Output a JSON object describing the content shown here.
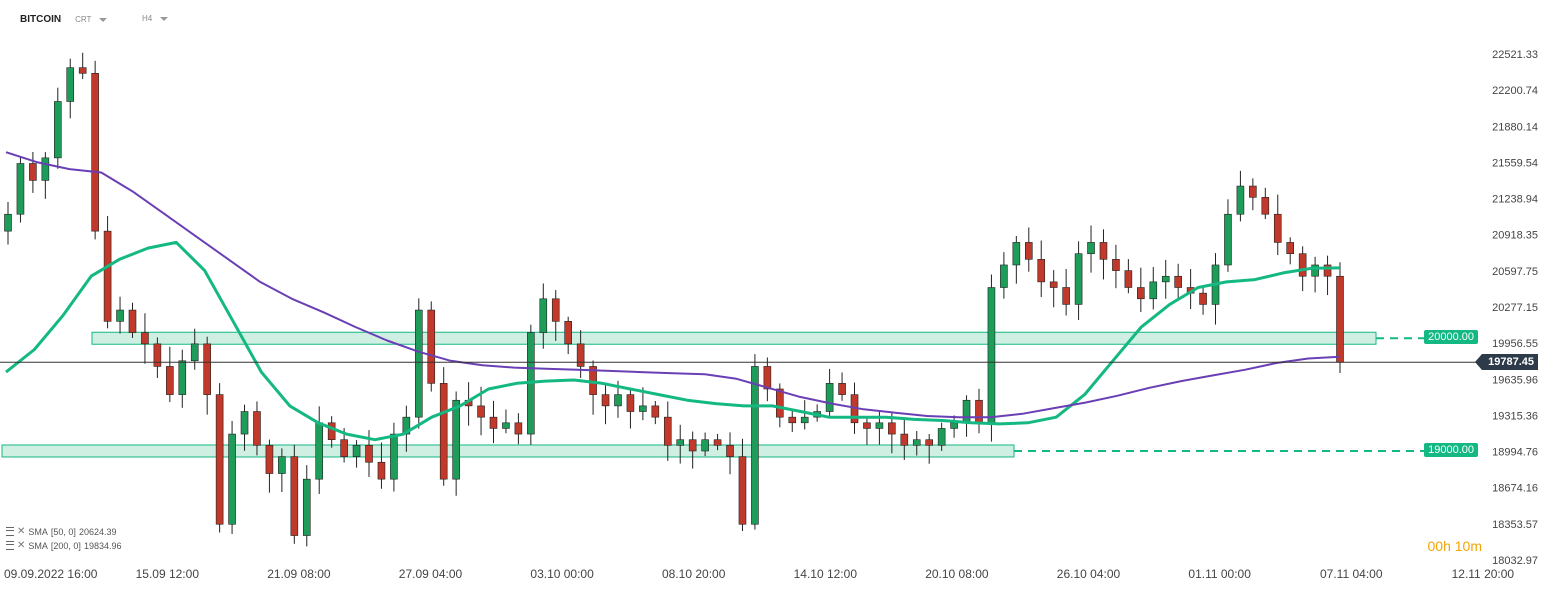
{
  "header": {
    "symbol": "BITCOIN",
    "source": "CRT",
    "timeframe": "H4"
  },
  "indicators": [
    {
      "label": "SMA",
      "params": "[50, 0]",
      "value": "20624.39",
      "color": "#14b882"
    },
    {
      "label": "SMA",
      "params": "[200, 0]",
      "value": "19834.96",
      "color": "#6a3fb5"
    }
  ],
  "timer": {
    "hours": "00",
    "h": "h",
    "minutes": "10",
    "m": "m"
  },
  "current_price": {
    "label": "19787.45",
    "value": 19787.45
  },
  "levels": [
    {
      "label": "20000.00",
      "value": 20000.0,
      "color": "#14b882"
    },
    {
      "label": "19000.00",
      "value": 19000.0,
      "color": "#14b882"
    }
  ],
  "colors": {
    "up": "#1e9c5a",
    "down": "#c0392b",
    "zone": "#bfe9d8",
    "zone_border": "#14b882"
  },
  "chart_data": {
    "type": "candlestick",
    "title": "BITCOIN",
    "timeframe": "H4",
    "x_tick_labels": [
      "09.09.2022 16:00",
      "15.09 12:00",
      "21.09 08:00",
      "27.09 04:00",
      "03.10 00:00",
      "08.10 20:00",
      "14.10 12:00",
      "20.10 08:00",
      "26.10 04:00",
      "01.11 00:00",
      "07.11 04:00",
      "12.11 20:00"
    ],
    "y_tick_labels": [
      "22521.33",
      "22200.74",
      "21880.14",
      "21559.54",
      "21238.94",
      "20918.35",
      "20597.75",
      "20277.15",
      "19956.55",
      "19635.96",
      "19315.36",
      "18994.76",
      "18674.16",
      "18353.57",
      "18032.97"
    ],
    "ylim": [
      18032.97,
      22521.33
    ],
    "closes": [
      21100,
      21550,
      21400,
      21600,
      22100,
      22400,
      22350,
      20950,
      20150,
      20250,
      20050,
      19950,
      19750,
      19500,
      19800,
      19950,
      19500,
      18350,
      19150,
      19350,
      19050,
      18800,
      18950,
      18250,
      18750,
      19250,
      19100,
      18950,
      19050,
      18900,
      18750,
      19150,
      19300,
      20250,
      19600,
      18750,
      19450,
      19400,
      19300,
      19200,
      19250,
      19150,
      20050,
      20350,
      20150,
      19950,
      19750,
      19500,
      19400,
      19500,
      19350,
      19400,
      19300,
      19050,
      19100,
      19000,
      19100,
      19050,
      18950,
      18350,
      19750,
      19550,
      19300,
      19250,
      19300,
      19350,
      19600,
      19500,
      19250,
      19200,
      19250,
      19150,
      19050,
      19100,
      19050,
      19200,
      19250,
      19450,
      19250,
      20450,
      20650,
      20850,
      20700,
      20500,
      20450,
      20300,
      20750,
      20850,
      20700,
      20600,
      20450,
      20350,
      20500,
      20550,
      20450,
      20400,
      20300,
      20650,
      21100,
      21350,
      21250,
      21100,
      20850,
      20750,
      20550,
      20650,
      20550,
      19787
    ],
    "series": [
      {
        "name": "SMA [50, 0]",
        "last_value": 20624.39,
        "values": [
          19700,
          19900,
          20200,
          20550,
          20700,
          20800,
          20850,
          20600,
          20150,
          19700,
          19400,
          19250,
          19150,
          19100,
          19150,
          19300,
          19400,
          19550,
          19600,
          19620,
          19630,
          19600,
          19550,
          19500,
          19450,
          19420,
          19400,
          19400,
          19350,
          19300,
          19300,
          19300,
          19280,
          19270,
          19250,
          19240,
          19250,
          19300,
          19500,
          19800,
          20100,
          20300,
          20450,
          20500,
          20520,
          20580,
          20620,
          20624
        ]
      },
      {
        "name": "SMA [200, 0]",
        "last_value": 19834.96,
        "values": [
          21650,
          21560,
          21500,
          21470,
          21300,
          21100,
          20900,
          20700,
          20500,
          20350,
          20230,
          20100,
          19980,
          19880,
          19800,
          19760,
          19740,
          19730,
          19720,
          19710,
          19700,
          19690,
          19680,
          19640,
          19560,
          19480,
          19420,
          19370,
          19340,
          19310,
          19300,
          19300,
          19330,
          19380,
          19430,
          19490,
          19560,
          19620,
          19670,
          19720,
          19780,
          19820,
          19835
        ]
      }
    ],
    "horizontal_levels": [
      20000.0,
      19000.0
    ],
    "current_price": 19787.45
  }
}
